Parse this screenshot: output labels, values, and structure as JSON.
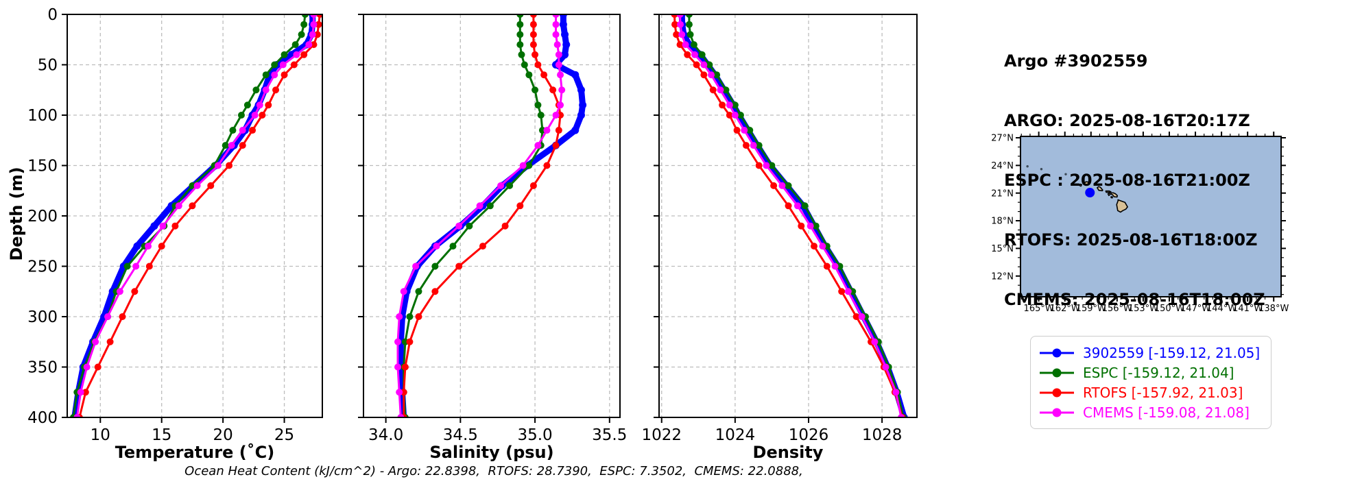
{
  "info": {
    "lines": [
      "Argo #3902559",
      "ARGO: 2025-08-16T20:17Z",
      "ESPC : 2025-08-16T21:00Z",
      "RTOFS: 2025-08-16T18:00Z",
      "CMEMS: 2025-08-16T18:00Z"
    ]
  },
  "axes": {
    "depth_label": "Depth (m)"
  },
  "footer_note": "Ocean Heat Content (kJ/cm^2) - Argo: 22.8398,  RTOFS: 28.7390,  ESPC: 7.3502,  CMEMS: 22.0888,",
  "colors": {
    "argo": "#0000ff",
    "espc": "#007000",
    "rtofs": "#ff0000",
    "cmems": "#ff00ff"
  },
  "legend": {
    "items": [
      {
        "label": "3902559 [-159.12, 21.05]",
        "color": "#0000ff"
      },
      {
        "label": "ESPC [-159.12, 21.04]",
        "color": "#007000"
      },
      {
        "label": "RTOFS [-157.92, 21.03]",
        "color": "#ff0000"
      },
      {
        "label": "CMEMS [-159.08, 21.08]",
        "color": "#ff00ff"
      }
    ]
  },
  "chart_data": [
    {
      "type": "line",
      "xlabel": "Temperature (˚C)",
      "ylabel": "Depth (m)",
      "xlim": [
        7.3,
        28.1
      ],
      "ylim": [
        0,
        400
      ],
      "xticks": [
        10,
        15,
        20,
        25
      ],
      "xtick_labels": [
        "10",
        "15",
        "20",
        "25"
      ],
      "yticks": [
        0,
        50,
        100,
        150,
        200,
        250,
        300,
        350,
        400
      ],
      "ytick_labels": [
        "0",
        "50",
        "100",
        "150",
        "200",
        "250",
        "300",
        "350",
        "400"
      ],
      "grid": true,
      "series": [
        {
          "name": "3902559",
          "color": "#0000ff",
          "depths": [
            0,
            10,
            20,
            30,
            40,
            50,
            60,
            75,
            90,
            100,
            115,
            130,
            150,
            170,
            190,
            210,
            230,
            250,
            275,
            300,
            325,
            350,
            375,
            400
          ],
          "values": [
            27.3,
            27.3,
            27.2,
            26.8,
            25.6,
            24.4,
            23.8,
            23.4,
            22.9,
            22.4,
            21.8,
            20.9,
            19.4,
            17.6,
            15.8,
            14.4,
            13.0,
            11.9,
            11.0,
            10.3,
            9.4,
            8.6,
            8.2,
            7.9
          ]
        },
        {
          "name": "ESPC",
          "color": "#007000",
          "depths": [
            0,
            10,
            20,
            30,
            40,
            50,
            60,
            75,
            90,
            100,
            115,
            130,
            150,
            170,
            190,
            210,
            230,
            250,
            275,
            300,
            325,
            350,
            375,
            400
          ],
          "values": [
            26.7,
            26.6,
            26.4,
            25.9,
            25.0,
            24.2,
            23.5,
            22.7,
            22.0,
            21.5,
            20.8,
            20.2,
            19.3,
            17.5,
            16.1,
            15.2,
            13.6,
            12.2,
            11.3,
            10.6,
            9.5,
            8.7,
            8.1,
            7.8
          ]
        },
        {
          "name": "RTOFS",
          "color": "#ff0000",
          "depths": [
            0,
            10,
            20,
            30,
            40,
            50,
            60,
            75,
            90,
            100,
            115,
            130,
            150,
            170,
            190,
            210,
            230,
            250,
            275,
            300,
            325,
            350,
            375,
            400
          ],
          "values": [
            27.9,
            27.8,
            27.7,
            27.4,
            26.6,
            25.8,
            25.0,
            24.3,
            23.7,
            23.2,
            22.4,
            21.6,
            20.5,
            19.0,
            17.5,
            16.1,
            15.0,
            14.0,
            12.8,
            11.8,
            10.8,
            9.8,
            8.8,
            8.3
          ]
        },
        {
          "name": "CMEMS",
          "color": "#ff00ff",
          "depths": [
            0,
            10,
            20,
            30,
            40,
            50,
            60,
            75,
            90,
            100,
            115,
            130,
            150,
            170,
            190,
            210,
            230,
            250,
            275,
            300,
            325,
            350,
            375,
            400
          ],
          "values": [
            27.4,
            27.4,
            27.3,
            27.0,
            26.0,
            24.9,
            24.2,
            23.5,
            23.0,
            22.6,
            21.6,
            20.7,
            19.6,
            17.9,
            16.4,
            15.1,
            13.9,
            12.9,
            11.6,
            10.6,
            9.6,
            8.9,
            8.4,
            8.1
          ]
        }
      ]
    },
    {
      "type": "line",
      "xlabel": "Salinity (psu)",
      "ylabel": "Depth (m)",
      "xlim": [
        33.85,
        35.57
      ],
      "ylim": [
        0,
        400
      ],
      "xticks": [
        34.0,
        34.5,
        35.0,
        35.5
      ],
      "xtick_labels": [
        "34.0",
        "34.5",
        "35.0",
        "35.5"
      ],
      "yticks": [
        0,
        50,
        100,
        150,
        200,
        250,
        300,
        350,
        400
      ],
      "grid": true,
      "series": [
        {
          "name": "3902559",
          "color": "#0000ff",
          "depths": [
            0,
            10,
            20,
            30,
            40,
            50,
            60,
            75,
            90,
            100,
            115,
            130,
            150,
            170,
            190,
            210,
            230,
            250,
            275,
            300,
            325,
            350,
            375,
            400
          ],
          "values": [
            35.19,
            35.19,
            35.2,
            35.21,
            35.2,
            35.14,
            35.27,
            35.31,
            35.32,
            35.31,
            35.27,
            35.14,
            34.95,
            34.78,
            34.65,
            34.5,
            34.33,
            34.21,
            34.14,
            34.11,
            34.1,
            34.1,
            34.11,
            34.12
          ]
        },
        {
          "name": "ESPC",
          "color": "#007000",
          "depths": [
            0,
            10,
            20,
            30,
            40,
            50,
            60,
            75,
            90,
            100,
            115,
            130,
            150,
            170,
            190,
            210,
            230,
            250,
            275,
            300,
            325,
            350,
            375,
            400
          ],
          "values": [
            34.9,
            34.9,
            34.9,
            34.9,
            34.91,
            34.93,
            34.96,
            35.0,
            35.02,
            35.04,
            35.05,
            35.04,
            34.96,
            34.83,
            34.7,
            34.56,
            34.45,
            34.33,
            34.22,
            34.16,
            34.13,
            34.12,
            34.12,
            34.13
          ]
        },
        {
          "name": "RTOFS",
          "color": "#ff0000",
          "depths": [
            0,
            10,
            20,
            30,
            40,
            50,
            60,
            75,
            90,
            100,
            115,
            130,
            150,
            170,
            190,
            210,
            230,
            250,
            275,
            300,
            325,
            350,
            375,
            400
          ],
          "values": [
            34.99,
            34.99,
            34.99,
            34.99,
            35.0,
            35.02,
            35.06,
            35.12,
            35.16,
            35.17,
            35.16,
            35.14,
            35.08,
            34.99,
            34.9,
            34.8,
            34.65,
            34.49,
            34.33,
            34.22,
            34.16,
            34.13,
            34.12,
            34.12
          ]
        },
        {
          "name": "CMEMS",
          "color": "#ff00ff",
          "depths": [
            0,
            10,
            20,
            30,
            40,
            50,
            60,
            75,
            90,
            100,
            115,
            130,
            150,
            170,
            190,
            210,
            230,
            250,
            275,
            300,
            325,
            350,
            375,
            400
          ],
          "values": [
            35.14,
            35.14,
            35.14,
            35.15,
            35.16,
            35.16,
            35.17,
            35.18,
            35.17,
            35.14,
            35.08,
            35.02,
            34.92,
            34.77,
            34.63,
            34.49,
            34.34,
            34.2,
            34.12,
            34.09,
            34.08,
            34.08,
            34.09,
            34.1
          ]
        }
      ]
    },
    {
      "type": "line",
      "xlabel": "Density",
      "ylabel": "Depth (m)",
      "xlim": [
        1021.93,
        1028.95
      ],
      "ylim": [
        0,
        400
      ],
      "xticks": [
        1022,
        1024,
        1026,
        1028
      ],
      "xtick_labels": [
        "1022",
        "1024",
        "1026",
        "1028"
      ],
      "yticks": [
        0,
        50,
        100,
        150,
        200,
        250,
        300,
        350,
        400
      ],
      "grid": true,
      "series": [
        {
          "name": "3902559",
          "color": "#0000ff",
          "depths": [
            0,
            10,
            20,
            30,
            40,
            50,
            60,
            75,
            90,
            100,
            115,
            130,
            150,
            170,
            190,
            210,
            230,
            250,
            275,
            300,
            325,
            350,
            375,
            400
          ],
          "values": [
            1022.55,
            1022.56,
            1022.6,
            1022.75,
            1023.05,
            1023.25,
            1023.45,
            1023.7,
            1023.95,
            1024.1,
            1024.35,
            1024.6,
            1024.95,
            1025.4,
            1025.85,
            1026.15,
            1026.45,
            1026.8,
            1027.15,
            1027.5,
            1027.85,
            1028.15,
            1028.4,
            1028.6
          ]
        },
        {
          "name": "ESPC",
          "color": "#007000",
          "depths": [
            0,
            10,
            20,
            30,
            40,
            50,
            60,
            75,
            90,
            100,
            115,
            130,
            150,
            170,
            190,
            210,
            230,
            250,
            275,
            300,
            325,
            350,
            375,
            400
          ],
          "values": [
            1022.75,
            1022.75,
            1022.78,
            1022.88,
            1023.1,
            1023.3,
            1023.5,
            1023.75,
            1024.0,
            1024.15,
            1024.4,
            1024.65,
            1025.0,
            1025.45,
            1025.9,
            1026.2,
            1026.5,
            1026.85,
            1027.2,
            1027.55,
            1027.9,
            1028.18,
            1028.42,
            1028.58
          ]
        },
        {
          "name": "RTOFS",
          "color": "#ff0000",
          "depths": [
            0,
            10,
            20,
            30,
            40,
            50,
            60,
            75,
            90,
            100,
            115,
            130,
            150,
            170,
            190,
            210,
            230,
            250,
            275,
            300,
            325,
            350,
            375,
            400
          ],
          "values": [
            1022.35,
            1022.36,
            1022.4,
            1022.5,
            1022.7,
            1022.95,
            1023.15,
            1023.4,
            1023.65,
            1023.85,
            1024.05,
            1024.3,
            1024.65,
            1025.05,
            1025.45,
            1025.8,
            1026.15,
            1026.5,
            1026.9,
            1027.3,
            1027.7,
            1028.05,
            1028.35,
            1028.55
          ]
        },
        {
          "name": "CMEMS",
          "color": "#ff00ff",
          "depths": [
            0,
            10,
            20,
            30,
            40,
            50,
            60,
            75,
            90,
            100,
            115,
            130,
            150,
            170,
            190,
            210,
            230,
            250,
            275,
            300,
            325,
            350,
            375,
            400
          ],
          "values": [
            1022.5,
            1022.51,
            1022.55,
            1022.65,
            1022.9,
            1023.15,
            1023.35,
            1023.6,
            1023.85,
            1024.0,
            1024.25,
            1024.5,
            1024.85,
            1025.28,
            1025.7,
            1026.05,
            1026.38,
            1026.72,
            1027.08,
            1027.45,
            1027.8,
            1028.1,
            1028.38,
            1028.52
          ]
        }
      ]
    },
    {
      "type": "map",
      "region": "Hawaii",
      "extent_lon": [
        -167.1,
        -137.15
      ],
      "extent_lat": [
        9.75,
        27.15
      ],
      "lon_ticks": [
        -165,
        -162,
        -159,
        -156,
        -153,
        -150,
        -147,
        -144,
        -141,
        -138
      ],
      "lon_tick_labels": [
        "165°W",
        "162°W",
        "159°W",
        "156°W",
        "153°W",
        "150°W",
        "147°W",
        "144°W",
        "141°W",
        "138°W"
      ],
      "lat_ticks": [
        27,
        24,
        21,
        18,
        15,
        12
      ],
      "lat_tick_labels": [
        "27°N",
        "24°N",
        "21°N",
        "18°N",
        "15°N",
        "12°N"
      ],
      "ocean_color": "#a2bbdb",
      "land_color": "#d8c096",
      "float_marker": {
        "lon": -159.12,
        "lat": 21.05,
        "color": "#0000ff"
      },
      "islands": [
        {
          "name": "Niihau",
          "points": [
            [
              -160.25,
              21.97
            ],
            [
              -160.07,
              21.92
            ],
            [
              -160.15,
              21.75
            ],
            [
              -160.3,
              21.82
            ]
          ]
        },
        {
          "name": "Kauai",
          "points": [
            [
              -159.78,
              22.05
            ],
            [
              -159.58,
              22.23
            ],
            [
              -159.32,
              22.2
            ],
            [
              -159.28,
              21.98
            ],
            [
              -159.5,
              21.86
            ],
            [
              -159.74,
              21.92
            ]
          ]
        },
        {
          "name": "Oahu",
          "points": [
            [
              -158.28,
              21.58
            ],
            [
              -158.12,
              21.7
            ],
            [
              -157.92,
              21.63
            ],
            [
              -157.65,
              21.32
            ],
            [
              -157.7,
              21.25
            ],
            [
              -158.1,
              21.3
            ]
          ]
        },
        {
          "name": "Molokai",
          "points": [
            [
              -157.3,
              21.22
            ],
            [
              -156.9,
              21.22
            ],
            [
              -156.7,
              21.13
            ],
            [
              -156.75,
              21.08
            ],
            [
              -157.25,
              21.08
            ]
          ]
        },
        {
          "name": "Lanai",
          "points": [
            [
              -157.05,
              20.92
            ],
            [
              -156.87,
              21.0
            ],
            [
              -156.8,
              20.85
            ],
            [
              -156.95,
              20.73
            ]
          ]
        },
        {
          "name": "Maui",
          "points": [
            [
              -156.7,
              21.0
            ],
            [
              -156.45,
              21.03
            ],
            [
              -156.2,
              20.93
            ],
            [
              -155.97,
              20.73
            ],
            [
              -156.0,
              20.57
            ],
            [
              -156.35,
              20.6
            ],
            [
              -156.5,
              20.8
            ],
            [
              -156.68,
              20.88
            ]
          ]
        },
        {
          "name": "Kahoolawe",
          "points": [
            [
              -156.7,
              20.6
            ],
            [
              -156.54,
              20.6
            ],
            [
              -156.55,
              20.48
            ],
            [
              -156.68,
              20.5
            ]
          ]
        },
        {
          "name": "Hawaii",
          "points": [
            [
              -155.9,
              20.27
            ],
            [
              -155.62,
              20.17
            ],
            [
              -155.1,
              20.0
            ],
            [
              -154.8,
              19.5
            ],
            [
              -155.0,
              19.25
            ],
            [
              -155.35,
              19.1
            ],
            [
              -155.6,
              18.93
            ],
            [
              -155.92,
              19.1
            ],
            [
              -156.05,
              19.75
            ],
            [
              -155.88,
              20.2
            ]
          ]
        }
      ],
      "islets": [
        [
          -166.3,
          23.9
        ],
        [
          -164.7,
          23.6
        ],
        [
          -161.9,
          23.05
        ]
      ]
    }
  ]
}
